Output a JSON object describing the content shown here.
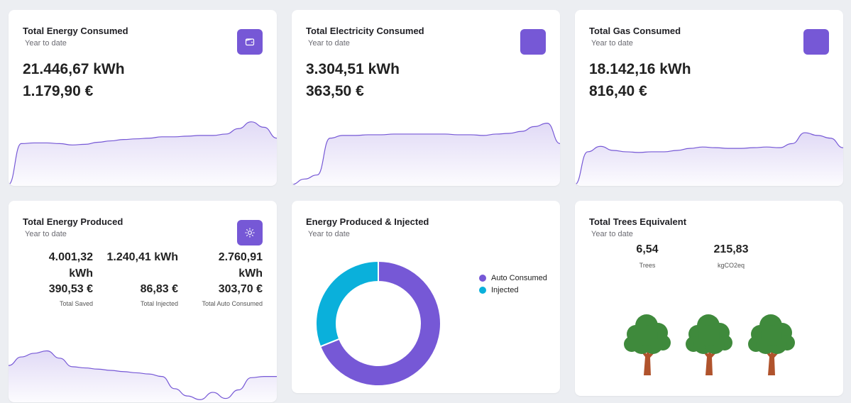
{
  "colors": {
    "accent": "#7658d6",
    "injected": "#0ab0db",
    "tree_leaf": "#3f8a3c",
    "tree_trunk": "#b0532c"
  },
  "cards": {
    "energy_consumed": {
      "title": "Total Energy Consumed",
      "subtitle": "Year to date",
      "kwh": "21.446,67 kWh",
      "eur": "1.179,90 €",
      "icon": "wallet-icon"
    },
    "electricity_consumed": {
      "title": "Total Electricity Consumed",
      "subtitle": "Year to date",
      "kwh": "3.304,51 kWh",
      "eur": "363,50 €"
    },
    "gas_consumed": {
      "title": "Total Gas Consumed",
      "subtitle": "Year to date",
      "kwh": "18.142,16 kWh",
      "eur": "816,40 €"
    },
    "energy_produced": {
      "title": "Total Energy Produced",
      "subtitle": "Year to date",
      "icon": "sun-icon",
      "columns": [
        {
          "kwh_line1": "4.001,32",
          "kwh_line2": "kWh",
          "eur": "390,53 €",
          "label": "Total Saved"
        },
        {
          "kwh_line1": "1.240,41 kWh",
          "kwh_line2": "",
          "eur": "86,83 €",
          "label": "Total Injected"
        },
        {
          "kwh_line1": "2.760,91",
          "kwh_line2": "kWh",
          "eur": "303,70 €",
          "label": "Total Auto Consumed"
        }
      ]
    },
    "produced_injected": {
      "title": "Energy Produced & Injected",
      "subtitle": "Year to date",
      "legend": [
        "Auto Consumed",
        "Injected"
      ]
    },
    "trees": {
      "title": "Total Trees Equivalent",
      "subtitle": "Year to date",
      "trees_value": "6,54",
      "trees_label": "Trees",
      "co2_value": "215,83",
      "co2_label": "kgCO2eq",
      "tree_icon_count": 3
    }
  },
  "chart_data": [
    {
      "type": "area",
      "name_ref": "energy_consumed",
      "values": [
        0,
        60,
        61,
        61,
        60,
        58,
        59,
        62,
        64,
        66,
        67,
        68,
        70,
        70,
        71,
        72,
        72,
        74,
        82,
        92,
        84,
        68
      ]
    },
    {
      "type": "area",
      "name_ref": "electricity_consumed",
      "values": [
        0,
        8,
        14,
        68,
        72,
        72,
        73,
        73,
        74,
        74,
        74,
        74,
        74,
        73,
        73,
        72,
        74,
        75,
        78,
        85,
        90,
        60
      ]
    },
    {
      "type": "area",
      "name_ref": "gas_consumed",
      "values": [
        0,
        48,
        56,
        50,
        48,
        47,
        48,
        48,
        50,
        53,
        55,
        54,
        53,
        53,
        54,
        55,
        54,
        60,
        76,
        72,
        68,
        54
      ]
    },
    {
      "type": "area",
      "name_ref": "energy_produced",
      "values": [
        58,
        72,
        78,
        82,
        70,
        56,
        54,
        52,
        50,
        48,
        46,
        44,
        40,
        20,
        8,
        2,
        14,
        4,
        18,
        38,
        40,
        40
      ]
    },
    {
      "type": "pie",
      "donut": true,
      "categories": [
        "Auto Consumed",
        "Injected"
      ],
      "values": [
        2760.91,
        1240.41
      ]
    }
  ]
}
